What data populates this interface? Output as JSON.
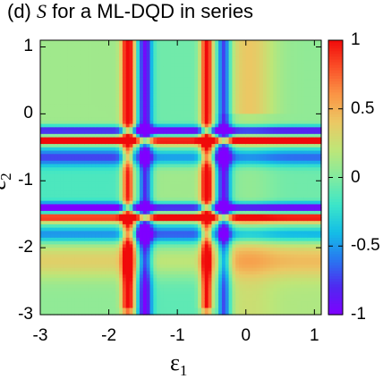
{
  "chart_data": {
    "type": "heatmap",
    "title_prefix": "(d) ",
    "title_symbol": "S",
    "title_suffix": " for a ML-DQD in series",
    "xlabel": "ε",
    "xlabel_sub": "1",
    "ylabel": "ε",
    "ylabel_sub": "2",
    "xlim": [
      -3,
      1.1
    ],
    "ylim": [
      -3,
      1.1
    ],
    "xticks": [
      "-3",
      "-2",
      "-1",
      "0",
      "1"
    ],
    "yticks": [
      "1",
      "0",
      "-1",
      "-2",
      "-3"
    ],
    "colorbar": {
      "range": [
        -1,
        1
      ],
      "ticks": [
        "1",
        "0.5",
        "0",
        "-0.5",
        "-1"
      ]
    },
    "resonances": [
      -1.6,
      -0.45
    ],
    "palette": "rainbow: purple(-1) blue cyan green(0) yellow orange red(1)"
  }
}
